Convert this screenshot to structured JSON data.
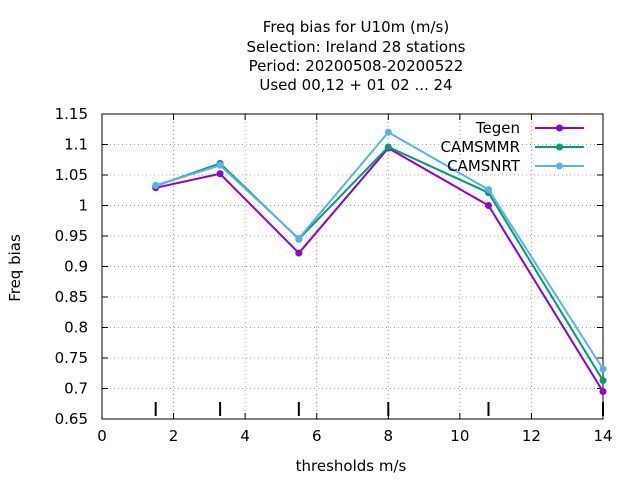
{
  "chart_data": {
    "type": "line",
    "title_lines": [
      "Freq bias  for U10m (m/s)",
      "Selection: Ireland      28 stations",
      "Period: 20200508-20200522",
      "Used  00,12  + 01 02 ... 24"
    ],
    "xlabel": "thresholds m/s",
    "ylabel": "Freq bias",
    "xlim": [
      0,
      14
    ],
    "ylim": [
      0.65,
      1.15
    ],
    "xticks": [
      0,
      2,
      4,
      6,
      8,
      10,
      12,
      14
    ],
    "yticks": [
      0.65,
      0.7,
      0.75,
      0.8,
      0.85,
      0.9,
      0.95,
      1,
      1.05,
      1.1,
      1.15
    ],
    "ytick_labels": [
      "0.65",
      "0.7",
      "0.75",
      "0.8",
      "0.85",
      "0.9",
      "0.95",
      "1",
      "1.05",
      "1.1",
      "1.15"
    ],
    "grid": true,
    "legend_position": "top-right",
    "threshold_markers_x": [
      1.5,
      3.3,
      5.5,
      8.0,
      10.8,
      14.0
    ],
    "series": [
      {
        "name": "Tegen",
        "color": "#9400d3",
        "x": [
          1.5,
          3.3,
          5.5,
          8.0,
          10.8,
          14.0
        ],
        "y": [
          1.029,
          1.052,
          0.922,
          1.094,
          1.0,
          0.695
        ]
      },
      {
        "name": "CAMSMMR",
        "color": "#009e73",
        "x": [
          1.5,
          3.3,
          5.5,
          8.0,
          10.8,
          14.0
        ],
        "y": [
          1.032,
          1.069,
          0.945,
          1.096,
          1.021,
          0.713
        ]
      },
      {
        "name": "CAMSNRT",
        "color": "#56b4e9",
        "x": [
          1.5,
          3.3,
          5.5,
          8.0,
          10.8,
          14.0
        ],
        "y": [
          1.033,
          1.066,
          0.946,
          1.12,
          1.026,
          0.732
        ]
      }
    ]
  }
}
